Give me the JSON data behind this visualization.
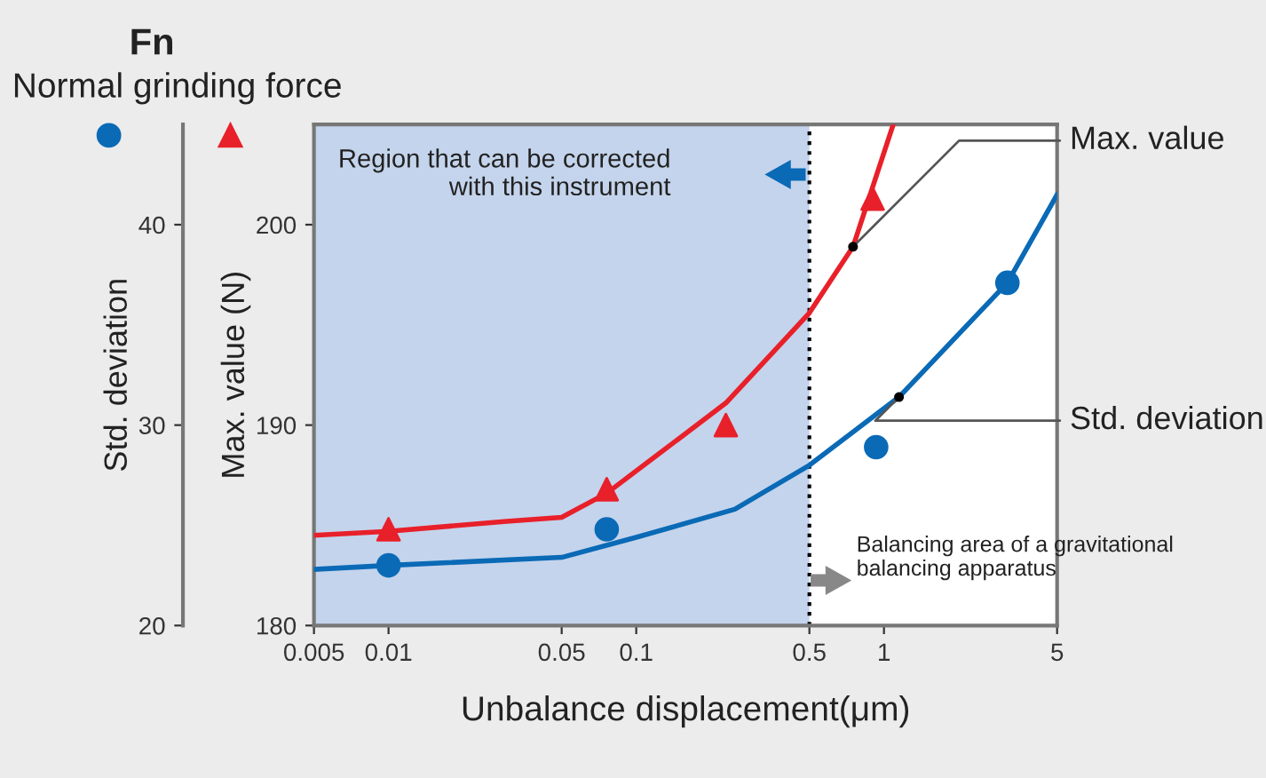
{
  "chart_data": {
    "type": "scatter",
    "title": "Fn",
    "subtitle": "Normal grinding force",
    "xlabel": "Unbalance displacement(μm)",
    "ylabel": "Max. value (N)",
    "y2label": "Std. deviation",
    "log": "x",
    "xlim": [
      0.005,
      5
    ],
    "xticks": [
      0.005,
      0.01,
      0.05,
      0.1,
      0.5,
      1,
      5
    ],
    "ylim": [
      180,
      205
    ],
    "yticks": [
      180,
      190,
      200
    ],
    "y2lim": [
      20,
      45
    ],
    "y2ticks": [
      20,
      30,
      40
    ],
    "grid": false,
    "legend": false,
    "series": [
      {
        "marker": "triangle",
        "color": "#e8202a",
        "x": [
          0.01,
          0.076,
          0.23,
          0.9
        ],
        "values": [
          184.8,
          186.8,
          190.0,
          201.3
        ]
      },
      {
        "marker": "circle",
        "color": "#0a6ab6",
        "axis": "y2",
        "x": [
          0.01,
          0.076,
          0.93,
          3.15
        ],
        "values": [
          23.0,
          24.8,
          28.9,
          37.1
        ]
      },
      {
        "type": "line",
        "name": "Max. value",
        "color": "#e8202a",
        "x": [
          0.005,
          0.01,
          0.03,
          0.05,
          0.076,
          0.23,
          0.5,
          0.75,
          1.09
        ],
        "values": [
          184.5,
          184.7,
          185.2,
          185.4,
          186.6,
          191.1,
          195.6,
          198.9,
          205
        ]
      },
      {
        "type": "line",
        "name": "Std. deviation",
        "color": "#0a6ab6",
        "axis": "y2",
        "x": [
          0.005,
          0.01,
          0.05,
          0.1,
          0.25,
          0.5,
          1.15,
          3.15,
          5
        ],
        "values": [
          22.8,
          23.0,
          23.4,
          24.4,
          25.8,
          28.0,
          31.4,
          37.1,
          41.5
        ]
      }
    ],
    "bands": [
      {
        "axis": "x",
        "from": 0.005,
        "to": 0.5,
        "color": "#c4d4ec"
      }
    ],
    "ref_lines": [
      {
        "axis": "x",
        "value": 0.5,
        "line_style": "dotted",
        "color": "#000000"
      }
    ],
    "annotations": [
      "Region that can be corrected\nwith this instrument",
      "Balancing area of a gravitational\nbalancing apparatus"
    ]
  }
}
